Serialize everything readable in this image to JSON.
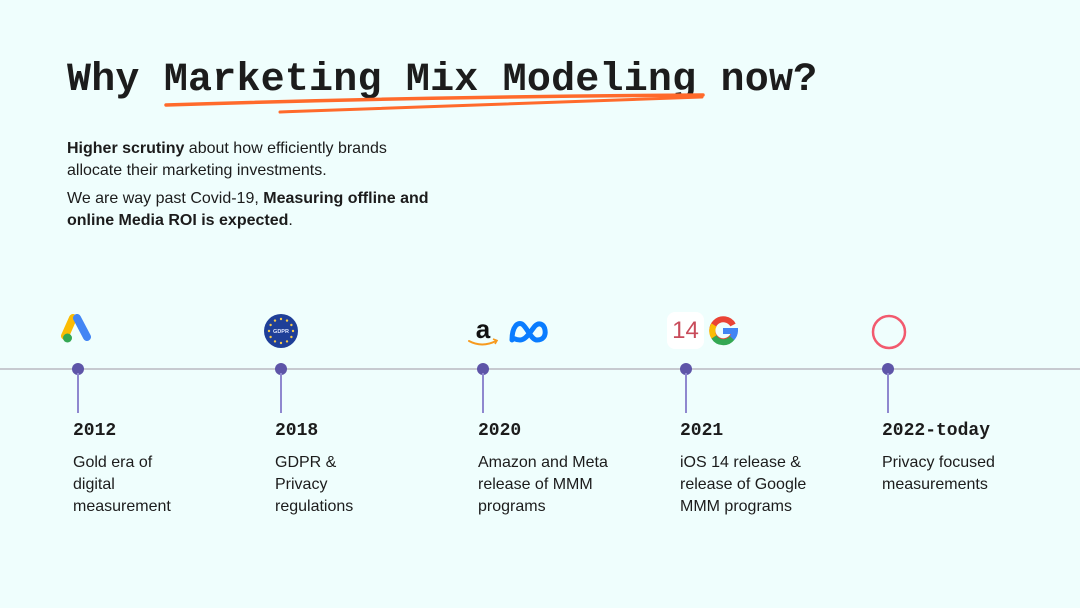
{
  "title": {
    "prefix": "Why ",
    "highlight": "Marketing Mix Modeling",
    "suffix": " now?",
    "underline_color": "#ff6a2b"
  },
  "intro": {
    "p1_bold": "Higher scrutiny",
    "p1_rest": " about how efficiently brands allocate their marketing investments.",
    "p2_start": "We are way past Covid-19, ",
    "p2_bold": "Measuring offline and online Media ROI is expected",
    "p2_end": "."
  },
  "timeline": {
    "dot_color": "#5e55a8",
    "items": [
      {
        "year": "2012",
        "text": "Gold era of digital measurement",
        "icons": [
          "google-ads-icon"
        ]
      },
      {
        "year": "2018",
        "text": "GDPR & Privacy regulations",
        "icons": [
          "gdpr-icon"
        ],
        "icon_text": "GDPR"
      },
      {
        "year": "2020",
        "text": "Amazon and Meta release of MMM programs",
        "icons": [
          "amazon-icon",
          "meta-icon"
        ]
      },
      {
        "year": "2021",
        "text": "iOS 14 release & release of Google MMM programs",
        "icons": [
          "ios14-icon",
          "google-icon"
        ],
        "icon_text": "14"
      },
      {
        "year": "2022-today",
        "text": "Privacy focused measurements",
        "icons": [
          "privacy-ring-icon"
        ]
      }
    ]
  }
}
